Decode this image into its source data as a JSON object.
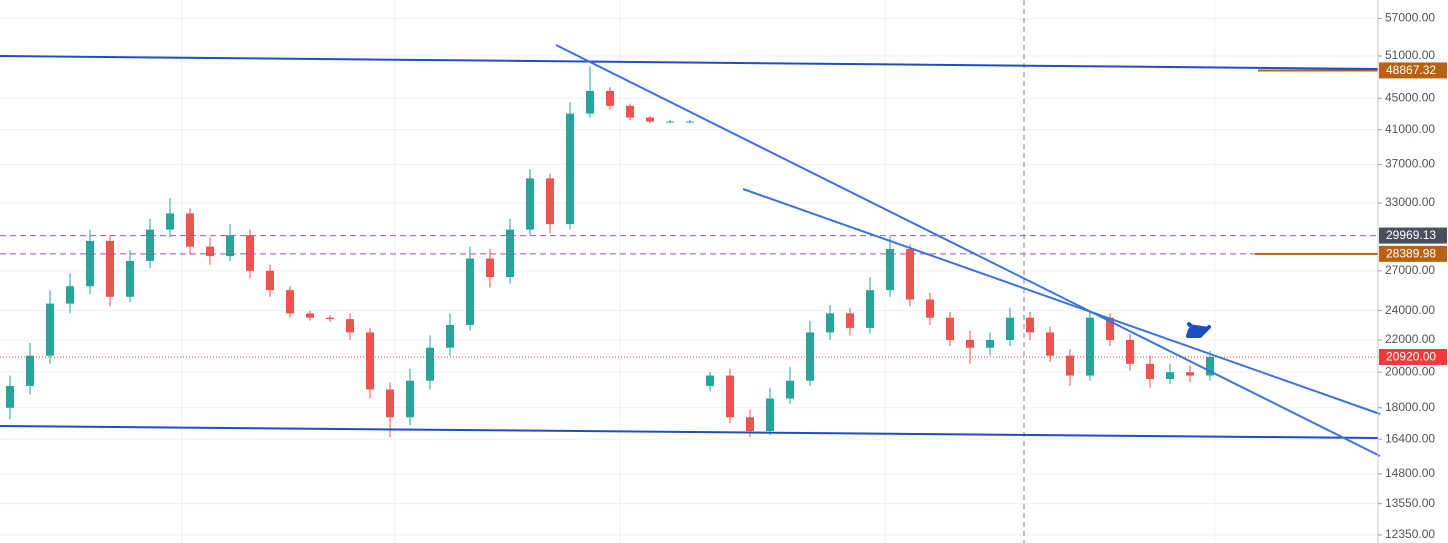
{
  "chart_data": {
    "type": "candlestick",
    "log_scale": true,
    "grid": true,
    "up_color": "#26a69a",
    "down_color": "#ef5350",
    "ylim": [
      12060,
      60200
    ],
    "yticks": [
      {
        "value": 57000,
        "label": "57000.00"
      },
      {
        "value": 51000,
        "label": "51000.00"
      },
      {
        "value": 45000,
        "label": "45000.00"
      },
      {
        "value": 41000,
        "label": "41000.00"
      },
      {
        "value": 37000,
        "label": "37000.00"
      },
      {
        "value": 33000,
        "label": "33000.00"
      },
      {
        "value": 27000,
        "label": "27000.00"
      },
      {
        "value": 24000,
        "label": "24000.00"
      },
      {
        "value": 22000,
        "label": "22000.00"
      },
      {
        "value": 20000,
        "label": "20000.00"
      },
      {
        "value": 18000,
        "label": "18000.00"
      },
      {
        "value": 16400,
        "label": "16400.00"
      },
      {
        "value": 14800,
        "label": "14800.00"
      },
      {
        "value": 13550,
        "label": "13550.00"
      },
      {
        "value": 12350,
        "label": "12350.00"
      }
    ],
    "open": [
      18000,
      19200,
      21000,
      24500,
      25800,
      29500,
      25000,
      27800,
      30500,
      32000,
      29000,
      28200,
      30000,
      27000,
      25500,
      23800,
      23500,
      23400,
      22500,
      19000,
      17500,
      19500,
      21500,
      23000,
      28000,
      26500,
      30500,
      35500,
      31000,
      43000,
      46000,
      44000,
      42500,
      42000,
      42000,
      19200,
      19800,
      17500,
      16800,
      18500,
      19500,
      22500,
      23800,
      22800,
      25500,
      28800,
      24800,
      23500,
      22000,
      21500,
      22000,
      23500,
      22500,
      21000,
      19800,
      23500,
      22000,
      20500,
      19600,
      20000,
      19800
    ],
    "high": [
      19800,
      21800,
      25500,
      26800,
      30500,
      30000,
      28700,
      31500,
      33500,
      32500,
      29800,
      31000,
      30500,
      27500,
      25800,
      24000,
      23700,
      23800,
      22800,
      19400,
      20200,
      22300,
      23800,
      29000,
      28800,
      31500,
      36500,
      36000,
      44500,
      49500,
      46500,
      44300,
      42700,
      42200,
      42200,
      20000,
      20200,
      17900,
      19100,
      20300,
      23300,
      24400,
      24200,
      26500,
      29900,
      29200,
      25300,
      23900,
      22600,
      22500,
      24200,
      23900,
      22900,
      21400,
      23900,
      23800,
      22400,
      21000,
      20500,
      20400,
      21300
    ],
    "low": [
      17400,
      18700,
      20500,
      23800,
      25200,
      24300,
      24600,
      27200,
      29800,
      28300,
      27500,
      27800,
      26400,
      25000,
      23500,
      23300,
      23200,
      22000,
      18500,
      16500,
      17100,
      19000,
      21000,
      22600,
      25700,
      26000,
      30000,
      30200,
      30500,
      42500,
      43500,
      42200,
      41800,
      41800,
      41800,
      18900,
      17200,
      16500,
      16600,
      18200,
      19200,
      22000,
      22300,
      22400,
      25000,
      24300,
      23000,
      21600,
      20500,
      21000,
      21600,
      22000,
      20600,
      19200,
      19500,
      21600,
      20100,
      19100,
      19300,
      19400,
      19500
    ],
    "close": [
      19200,
      21000,
      24500,
      25800,
      29500,
      25000,
      27800,
      30500,
      32000,
      29000,
      28200,
      30000,
      27000,
      25500,
      23800,
      23500,
      23400,
      22500,
      19000,
      17500,
      19500,
      21500,
      23000,
      28000,
      26500,
      30500,
      35500,
      31000,
      43000,
      46000,
      44000,
      42500,
      42000,
      42000,
      42000,
      19800,
      17500,
      16800,
      18500,
      19500,
      22500,
      23800,
      22800,
      25500,
      28800,
      24800,
      23500,
      22000,
      21500,
      22000,
      23500,
      22500,
      21000,
      19800,
      23500,
      22000,
      20500,
      19600,
      20000,
      19800,
      20920
    ],
    "price_labels": [
      {
        "value": 48867.32,
        "label": "48867.32",
        "color": "#b8620f",
        "line": "segment"
      },
      {
        "value": 29969.13,
        "label": "29969.13",
        "color": "#4a4f5c",
        "line": "dashed"
      },
      {
        "value": 28389.98,
        "label": "28389.98",
        "color": "#b8620f",
        "line": "dashed"
      },
      {
        "value": 20920,
        "label": "20920.00",
        "color": "#ef3b3b",
        "line": "dotted"
      }
    ]
  }
}
